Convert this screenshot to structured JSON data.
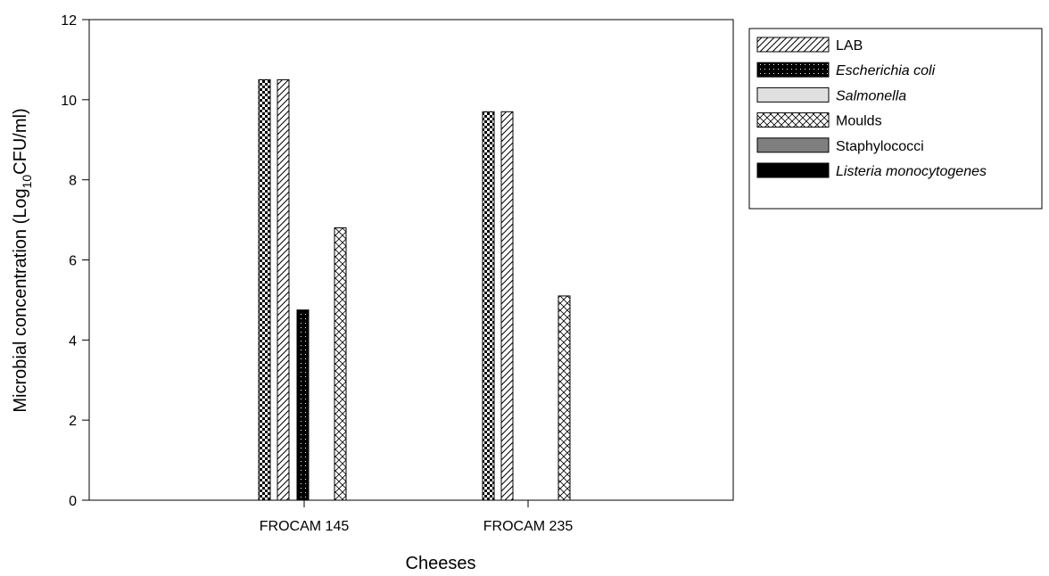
{
  "chart_data": {
    "type": "bar",
    "title": "",
    "xlabel": "Cheeses",
    "ylabel": {
      "prefix": "Microbial concentration (Log",
      "subscript": "10",
      "suffix": "CFU/ml)"
    },
    "ylim": [
      0,
      12
    ],
    "yticks": [
      "0",
      "2",
      "4",
      "6",
      "8",
      "10",
      "12"
    ],
    "categories": [
      "FROCAM 145",
      "FROCAM 235"
    ],
    "legend_position": "right",
    "grid": false,
    "legend": [
      {
        "label": "LAB",
        "italic": false,
        "pattern": "hatch"
      },
      {
        "label": "Escherichia coli",
        "italic": true,
        "pattern": "dots"
      },
      {
        "label": "Salmonella",
        "italic": true,
        "pattern": "lightgray"
      },
      {
        "label": "Moulds",
        "italic": false,
        "pattern": "crosshatch"
      },
      {
        "label": "Staphylococci",
        "italic": false,
        "pattern": "gray"
      },
      {
        "label": "Listeria monocytogenes",
        "italic": true,
        "pattern": "black"
      }
    ],
    "bars": [
      {
        "pattern": "checker",
        "values": [
          10.5,
          9.7
        ]
      },
      {
        "pattern": "hatch",
        "values": [
          10.5,
          9.7
        ]
      },
      {
        "pattern": "dots",
        "values": [
          4.75,
          0
        ]
      },
      {
        "pattern": "crosshatch",
        "values": [
          6.8,
          5.1
        ]
      }
    ]
  }
}
